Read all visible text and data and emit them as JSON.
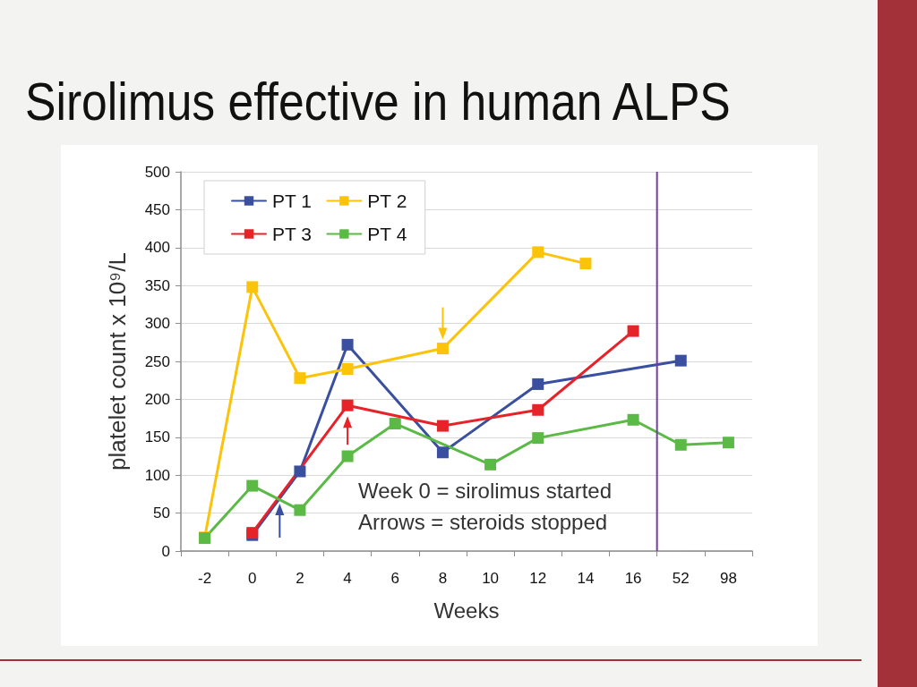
{
  "chart_data": {
    "type": "line",
    "title": "Sirolimus effective in human ALPS",
    "xlabel": "Weeks",
    "ylabel": "platelet count x 10⁹/L",
    "categories": [
      "-2",
      "0",
      "2",
      "4",
      "6",
      "8",
      "10",
      "12",
      "14",
      "16",
      "52",
      "98"
    ],
    "series": [
      {
        "name": "PT 1",
        "color": "#3a4fa0",
        "values": [
          null,
          21,
          105,
          272,
          null,
          130,
          null,
          220,
          null,
          null,
          251,
          null
        ]
      },
      {
        "name": "PT 2",
        "color": "#fcc30b",
        "values": [
          18,
          348,
          228,
          240,
          null,
          267,
          null,
          394,
          379,
          null,
          null,
          null
        ]
      },
      {
        "name": "PT 3",
        "color": "#e52329",
        "values": [
          null,
          24,
          null,
          192,
          null,
          165,
          null,
          186,
          null,
          290,
          null,
          null
        ]
      },
      {
        "name": "PT 4",
        "color": "#5bb946",
        "values": [
          17,
          86,
          54,
          125,
          168,
          null,
          114,
          149,
          null,
          173,
          140,
          143
        ]
      }
    ],
    "ylim": [
      0,
      500
    ],
    "yticks": [
      0,
      50,
      100,
      150,
      200,
      250,
      300,
      350,
      400,
      450,
      500
    ],
    "ref_lines": [
      {
        "axis": "x",
        "value": "16",
        "color": "#7040a0"
      }
    ],
    "annotations": [
      "Week 0 = sirolimus started",
      "Arrows = steroids stopped"
    ],
    "grid": "y",
    "legend": "top left",
    "marker": "square"
  }
}
